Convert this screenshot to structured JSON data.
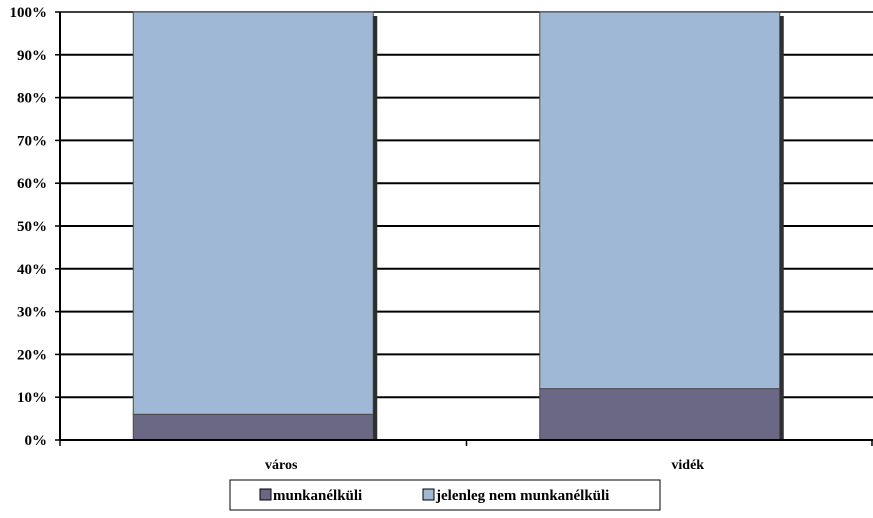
{
  "chart_data": {
    "type": "bar",
    "stacked": true,
    "percent": true,
    "categories": [
      "város",
      "vidék"
    ],
    "series": [
      {
        "name": "munkanélküli",
        "values": [
          6,
          12
        ],
        "color": "#6b6885"
      },
      {
        "name": "jelenleg nem munkanélküli",
        "values": [
          94,
          88
        ],
        "color": "#9fb8d6"
      }
    ],
    "ylim": [
      0,
      100
    ],
    "yticks": [
      "0%",
      "10%",
      "20%",
      "30%",
      "40%",
      "50%",
      "60%",
      "70%",
      "80%",
      "90%",
      "100%"
    ],
    "grid": true,
    "legend_position": "bottom",
    "title": "",
    "xlabel": "",
    "ylabel": ""
  }
}
